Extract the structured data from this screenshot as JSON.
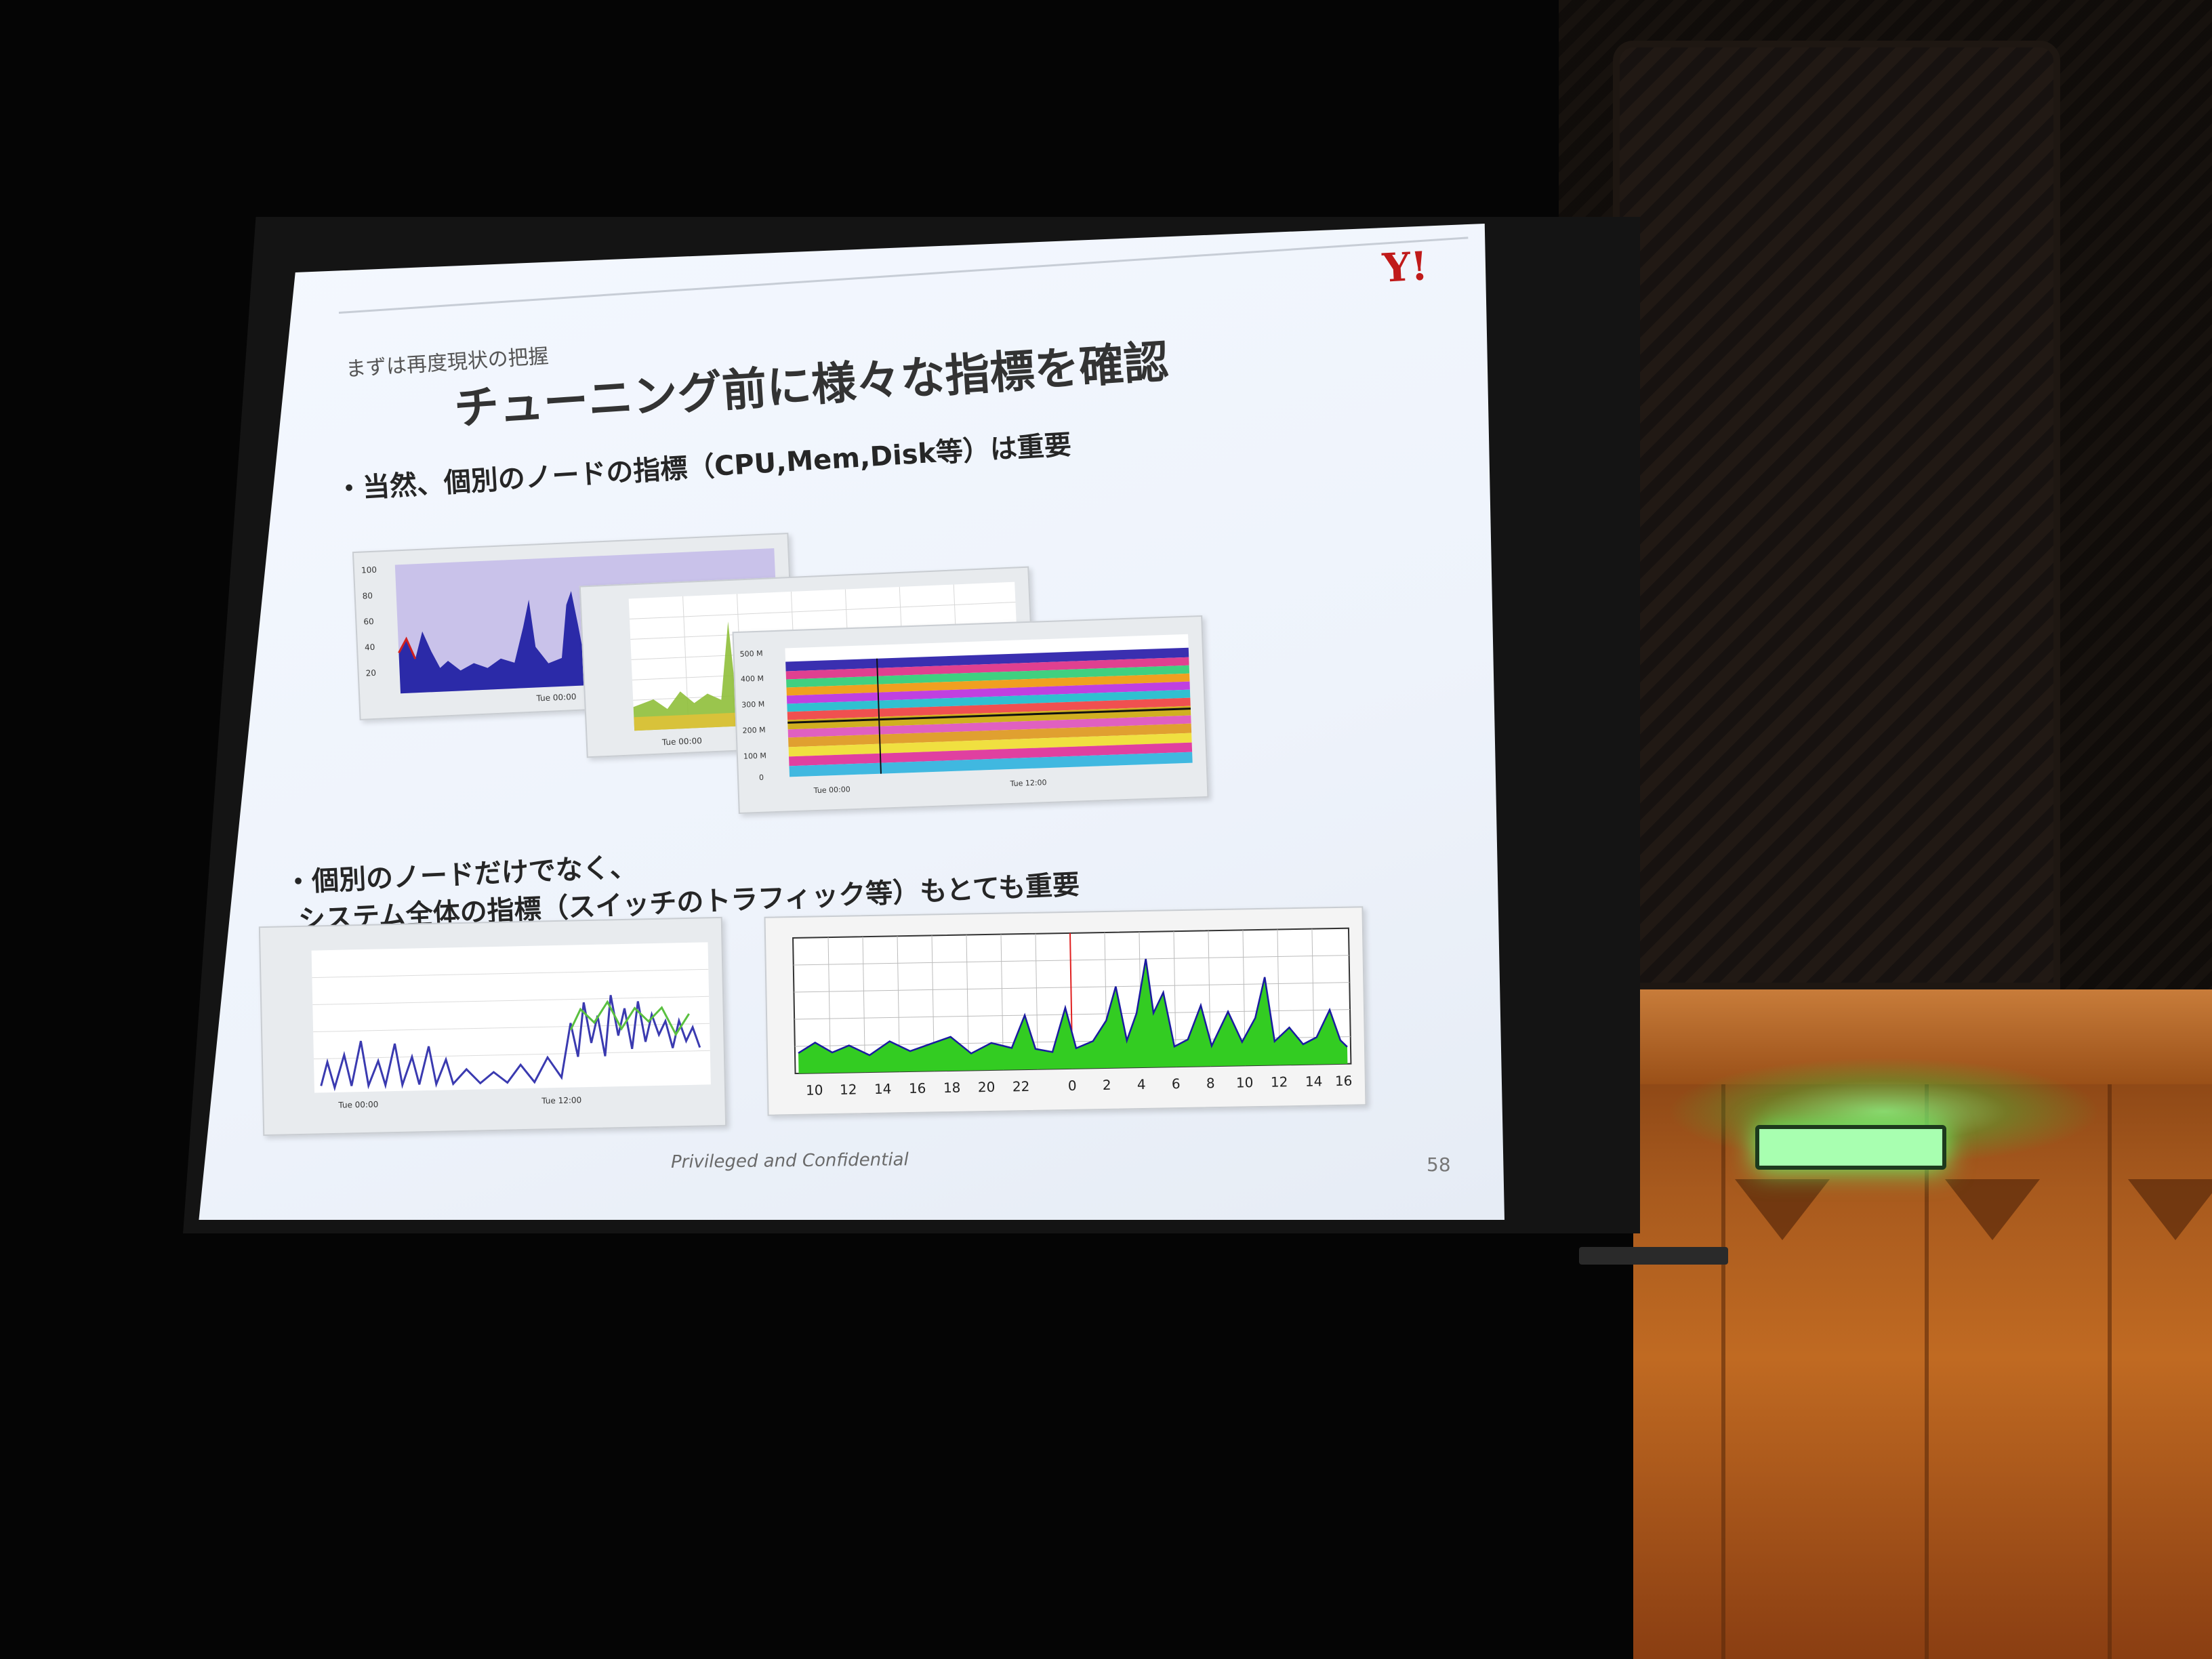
{
  "slide": {
    "brand": "Y!",
    "subtitle": "まずは再度現状の把握",
    "title": "チューニング前に様々な指標を確認",
    "bullet1": "・当然、個別のノードの指標（CPU,Mem,Disk等）は重要",
    "bullet2_line1": "・個別のノードだけでなく、",
    "bullet2_line2": "システム全体の指標（スイッチのトラフィック等）もとても重要",
    "footer": "Privileged and Confidential",
    "page_number": "58"
  },
  "graphs": {
    "cpu_ticks_y": [
      "100",
      "80",
      "60",
      "40",
      "20"
    ],
    "cpu_tick_x": "Tue 00:00",
    "mem_tick_x": "Tue 00:00",
    "disk_ticks_y": [
      "500 M",
      "400 M",
      "300 M",
      "200 M",
      "100 M",
      "0"
    ],
    "disk_ticks_x": [
      "Tue 00:00",
      "Tue 12:00"
    ],
    "net_ticks_x": [
      "Tue 00:00",
      "Tue 12:00"
    ],
    "traffic_ticks_x": [
      "10",
      "12",
      "14",
      "16",
      "18",
      "20",
      "22",
      "0",
      "2",
      "4",
      "6",
      "8",
      "10",
      "12",
      "14",
      "16"
    ]
  }
}
